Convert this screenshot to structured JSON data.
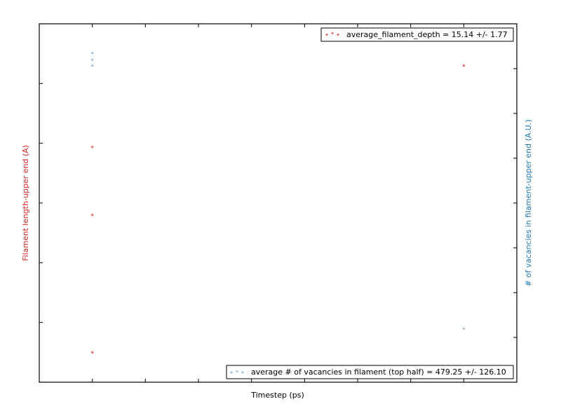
{
  "chart_data": {
    "type": "scatter",
    "title": "",
    "xlabel": "Timestep (ps)",
    "ylabel_left": "Filament length-upper end (A)",
    "ylabel_right": "# of vacancies in filament-upper end (A.U.)",
    "xlim": [
      -1,
      8
    ],
    "ylim_left": [
      0,
      6
    ],
    "ylim_right": [
      0,
      8
    ],
    "x_ticks": [
      0,
      1,
      2,
      3,
      4,
      5,
      6,
      7,
      8
    ],
    "y_ticks_left": [
      1,
      2,
      3,
      4,
      5
    ],
    "y_ticks_right": [
      1,
      2,
      3,
      4,
      5,
      6,
      7
    ],
    "tick_labels_visible": false,
    "grid": false,
    "series": [
      {
        "name": "average_filament_depth = 15.14 +/- 1.77",
        "axis": "left",
        "color": "#e8736f",
        "marker": "circle",
        "x": [
          0,
          0,
          0,
          7
        ],
        "y": [
          0.5,
          2.8,
          3.94,
          5.3
        ]
      },
      {
        "name": "average # of vacancies in filament (top half) = 479.25 +/- 126.10",
        "axis": "right",
        "color": "#7fa7cf",
        "marker": "triangle",
        "x": [
          0,
          0,
          0,
          7
        ],
        "y": [
          7.07,
          7.2,
          7.35,
          1.2
        ]
      }
    ],
    "legends": [
      {
        "series": 0,
        "placement": "upper-right"
      },
      {
        "series": 1,
        "placement": "lower-right"
      }
    ]
  }
}
